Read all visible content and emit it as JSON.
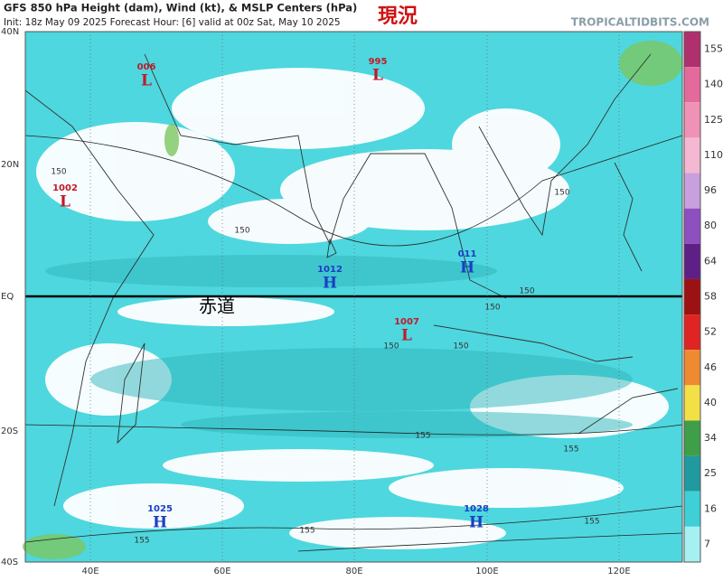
{
  "header": {
    "line1": "GFS 850 hPa Height (dam), Wind (kt), & MSLP Centers (hPa)",
    "line2": "Init: 18z May 09 2025   Forecast Hour: [6]   valid at 00z Sat, May 10 2025",
    "annotation": "現況",
    "watermark": "TROPICALTIDBITS.COM"
  },
  "map": {
    "equator_label": "赤道",
    "lat_labels": [
      "40N",
      "20N",
      "EQ",
      "20S",
      "40S"
    ],
    "lon_labels": [
      "40E",
      "60E",
      "80E",
      "100E",
      "120E"
    ],
    "pressure_centers": [
      {
        "value": "006",
        "type": "L"
      },
      {
        "value": "995",
        "type": "L"
      },
      {
        "value": "1002",
        "type": "L"
      },
      {
        "value": "1012",
        "type": "H"
      },
      {
        "value": "011",
        "type": "H"
      },
      {
        "value": "1007",
        "type": "L"
      },
      {
        "value": "1025",
        "type": "H"
      },
      {
        "value": "1028",
        "type": "H"
      }
    ],
    "contour_labels": [
      "150",
      "150",
      "150",
      "150",
      "150",
      "150",
      "150",
      "155",
      "155",
      "155",
      "155",
      "155"
    ]
  },
  "colorbar": {
    "ticks": [
      155,
      140,
      125,
      110,
      96,
      80,
      64,
      58,
      52,
      46,
      40,
      34,
      25,
      16,
      7
    ],
    "colors": [
      "#b0306e",
      "#e46a9c",
      "#ef92b6",
      "#f4b8d2",
      "#c9a0de",
      "#8e4fc0",
      "#5e1f86",
      "#9c1212",
      "#e02424",
      "#f08a30",
      "#f2e046",
      "#3f9f48",
      "#1f9a9e",
      "#3fcfd6",
      "#a6f0f2"
    ]
  }
}
